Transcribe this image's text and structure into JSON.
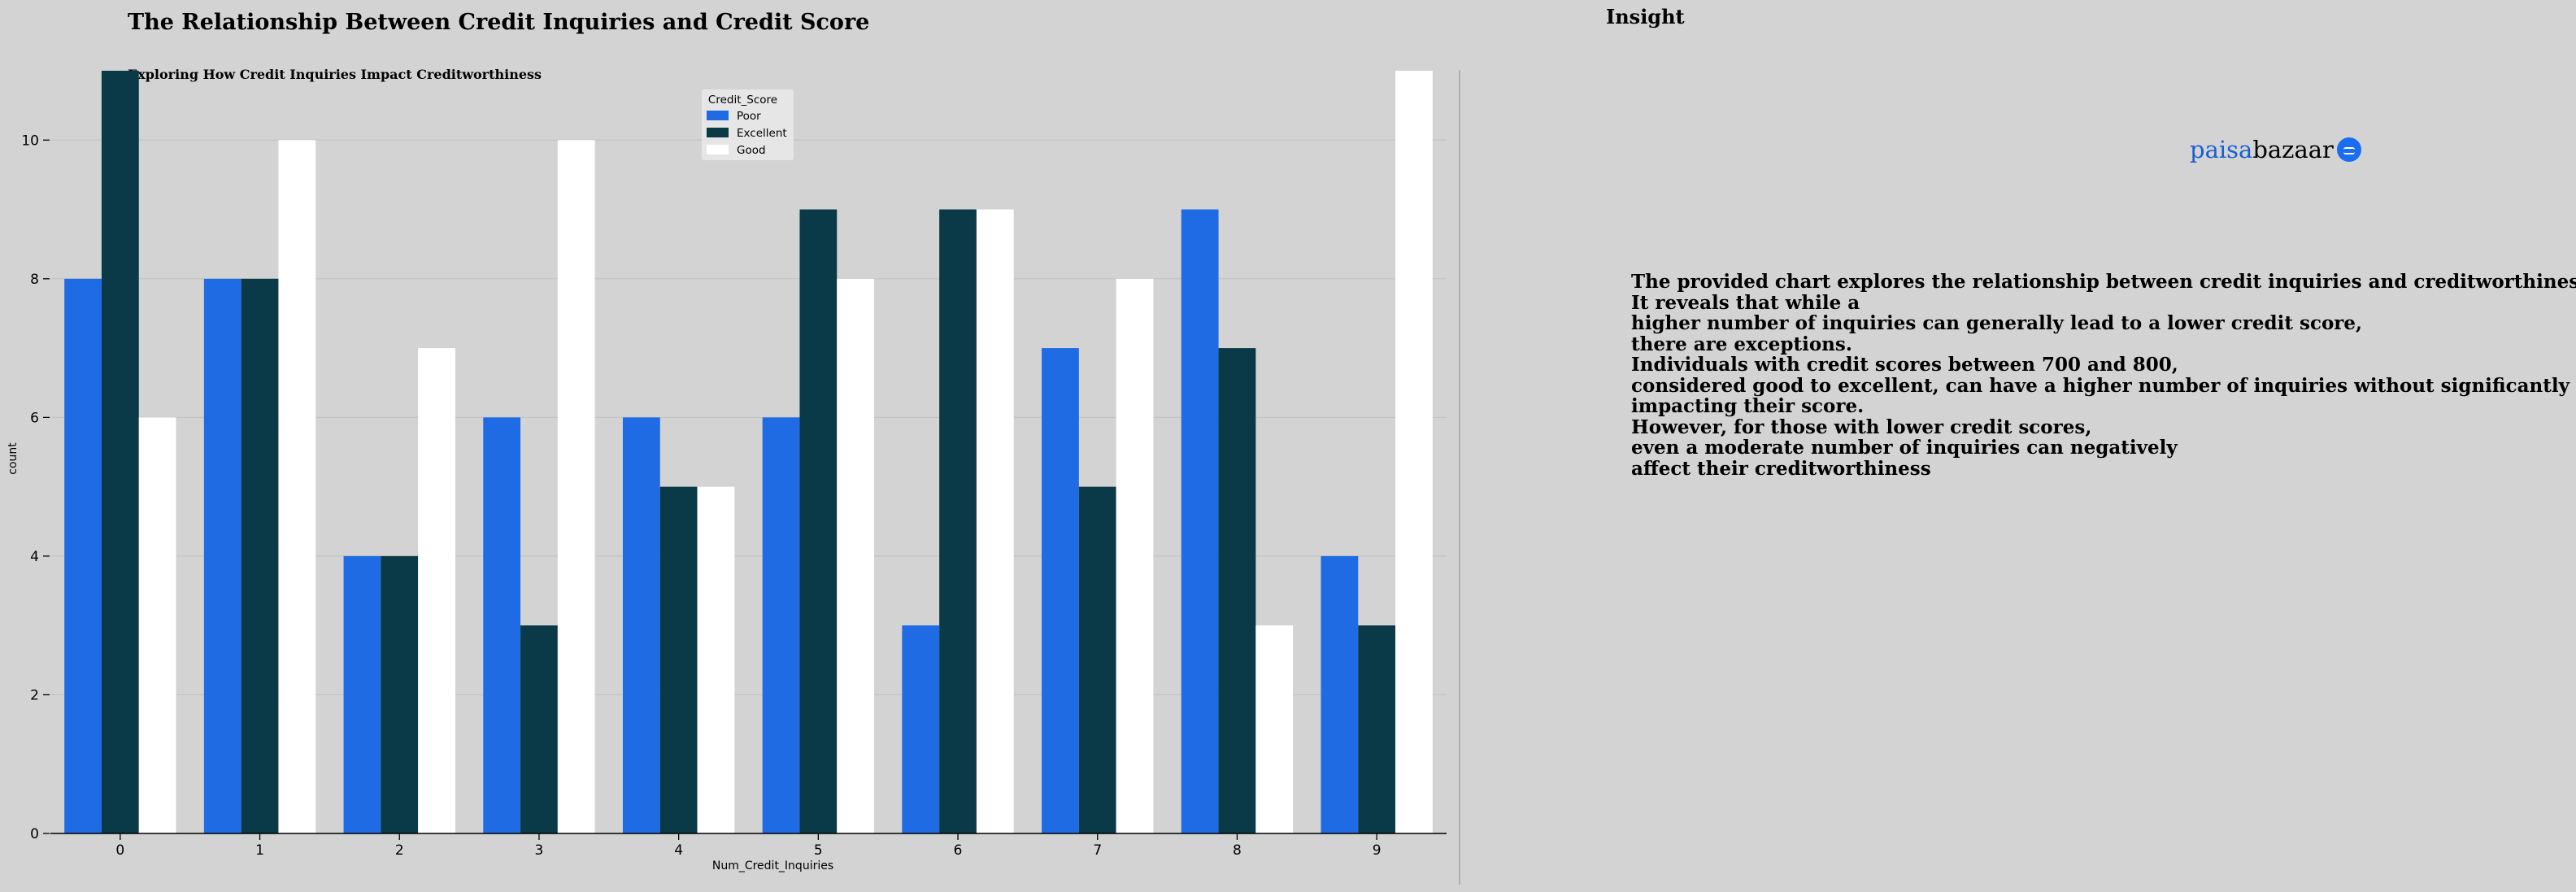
{
  "header": {
    "title": "The Relationship Between Credit Inquiries and Credit Score",
    "subtitle": "Exploring How Credit Inquiries Impact Creditworthiness"
  },
  "insight": {
    "title": "Insight",
    "logo_part1": "paisa",
    "logo_part2": "bazaar",
    "lines": [
      "The provided chart explores the relationship between credit inquiries and creditworthiness.",
      "It reveals that while a",
      "higher number of inquiries can generally lead to a lower credit score,",
      "there are exceptions.",
      "Individuals with credit scores between 700 and 800,",
      "considered good to excellent, can have a higher number of inquiries without significantly",
      "impacting their score.",
      "However, for those with lower credit scores,",
      "even a moderate number of inquiries can negatively",
      "affect their creditworthiness"
    ]
  },
  "chart_data": {
    "type": "bar",
    "xlabel": "Num_Credit_Inquiries",
    "ylabel": "count",
    "categories": [
      "0",
      "1",
      "2",
      "3",
      "4",
      "5",
      "6",
      "7",
      "8",
      "9"
    ],
    "ylim": [
      0,
      11
    ],
    "yticks": [
      0,
      2,
      4,
      6,
      8,
      10
    ],
    "grid": true,
    "legend": {
      "title": "Credit_Score",
      "position": "top-center"
    },
    "series": [
      {
        "name": "Poor",
        "color": "#1f6be3",
        "values": [
          8,
          8,
          4,
          6,
          6,
          6,
          3,
          7,
          9,
          4
        ]
      },
      {
        "name": "Excellent",
        "color": "#0a3947",
        "values": [
          11,
          8,
          4,
          3,
          5,
          9,
          9,
          5,
          7,
          3
        ]
      },
      {
        "name": "Good",
        "color": "#ffffff",
        "values": [
          6,
          10,
          7,
          10,
          5,
          8,
          9,
          8,
          3,
          11
        ]
      }
    ]
  }
}
